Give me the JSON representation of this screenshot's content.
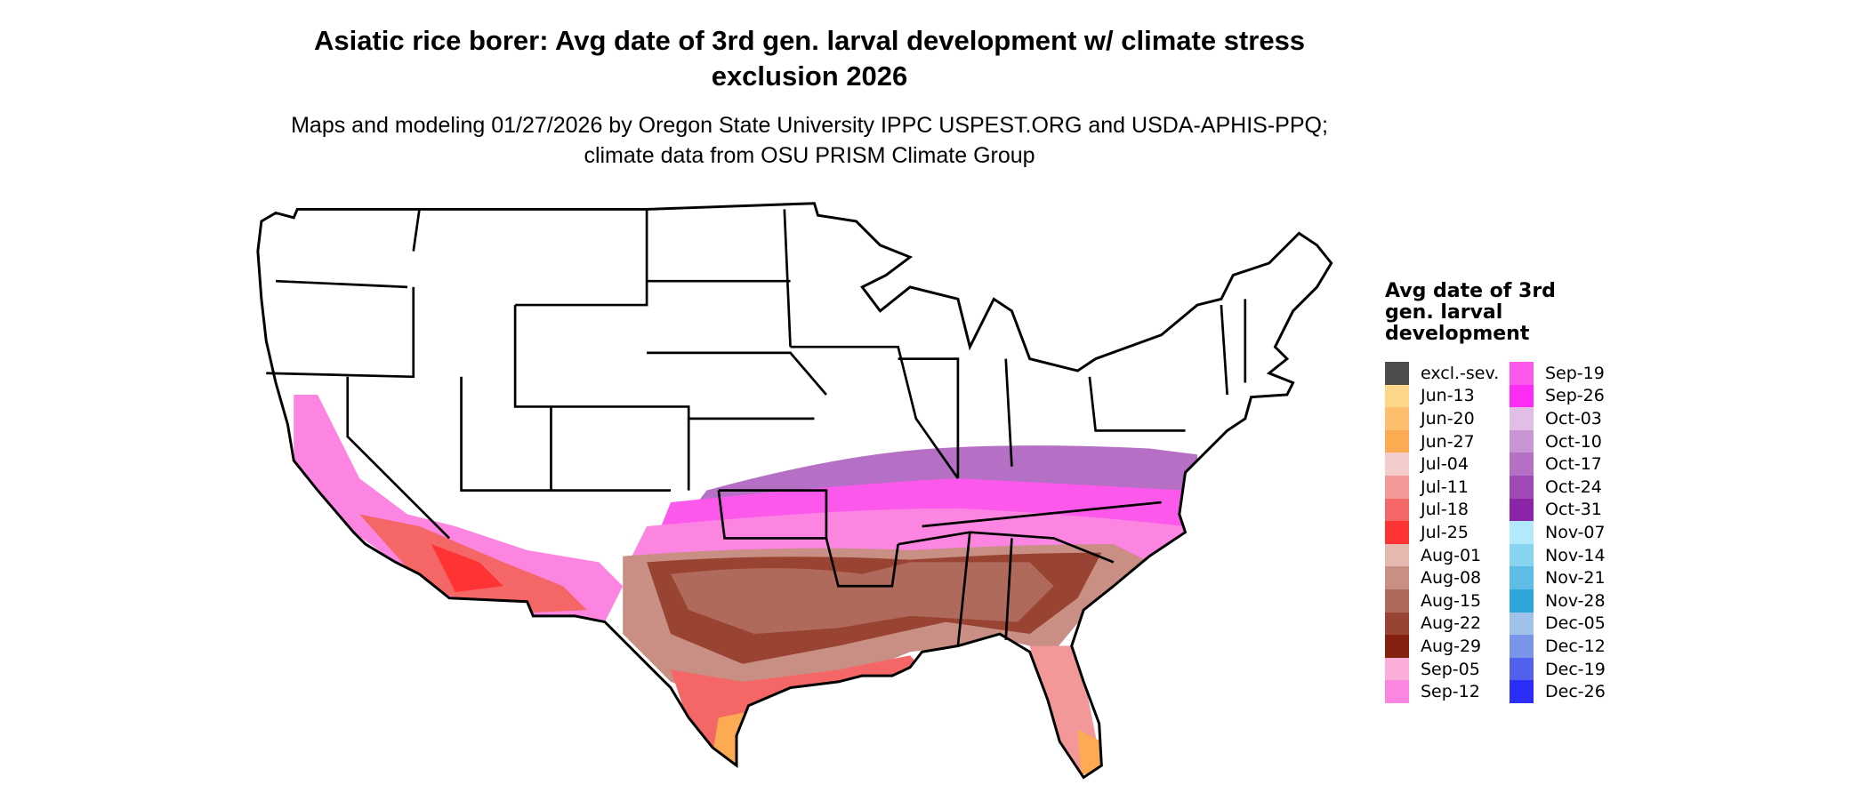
{
  "title": "Asiatic rice borer: Avg date of 3rd gen. larval development w/ climate stress exclusion 2026",
  "subtitle": "Maps and modeling 01/27/2026 by Oregon State University IPPC USPEST.ORG and USDA-APHIS-PPQ; climate data from OSU PRISM Climate Group",
  "legend": {
    "title": "Avg date of 3rd gen. larval development",
    "items": [
      {
        "label": "excl.-sev.",
        "color": "#4d4d4d"
      },
      {
        "label": "Jun-13",
        "color": "#fed68a"
      },
      {
        "label": "Jun-20",
        "color": "#fdbe6e"
      },
      {
        "label": "Jun-27",
        "color": "#fcab52"
      },
      {
        "label": "Jul-04",
        "color": "#f5cccc"
      },
      {
        "label": "Jul-11",
        "color": "#f39898"
      },
      {
        "label": "Jul-18",
        "color": "#f56666"
      },
      {
        "label": "Jul-25",
        "color": "#fe3434"
      },
      {
        "label": "Aug-01",
        "color": "#e5b8b0"
      },
      {
        "label": "Aug-08",
        "color": "#c98e84"
      },
      {
        "label": "Aug-15",
        "color": "#b06a5c"
      },
      {
        "label": "Aug-22",
        "color": "#994433"
      },
      {
        "label": "Aug-29",
        "color": "#86200e"
      },
      {
        "label": "Sep-05",
        "color": "#fcaed8"
      },
      {
        "label": "Sep-12",
        "color": "#fc85e2"
      },
      {
        "label": "Sep-19",
        "color": "#fc58ec"
      },
      {
        "label": "Sep-26",
        "color": "#fc2cf4"
      },
      {
        "label": "Oct-03",
        "color": "#e2bde6"
      },
      {
        "label": "Oct-10",
        "color": "#c995d4"
      },
      {
        "label": "Oct-17",
        "color": "#b56fc4"
      },
      {
        "label": "Oct-24",
        "color": "#9f4ab6"
      },
      {
        "label": "Oct-31",
        "color": "#8c24a8"
      },
      {
        "label": "Nov-07",
        "color": "#b2eafc"
      },
      {
        "label": "Nov-14",
        "color": "#86d4f0"
      },
      {
        "label": "Nov-21",
        "color": "#5ebde6"
      },
      {
        "label": "Nov-28",
        "color": "#2ea6da"
      },
      {
        "label": "Dec-05",
        "color": "#9fc3e8"
      },
      {
        "label": "Dec-12",
        "color": "#7895ea"
      },
      {
        "label": "Dec-19",
        "color": "#5260ee"
      },
      {
        "label": "Dec-26",
        "color": "#2a2ef8"
      }
    ]
  }
}
